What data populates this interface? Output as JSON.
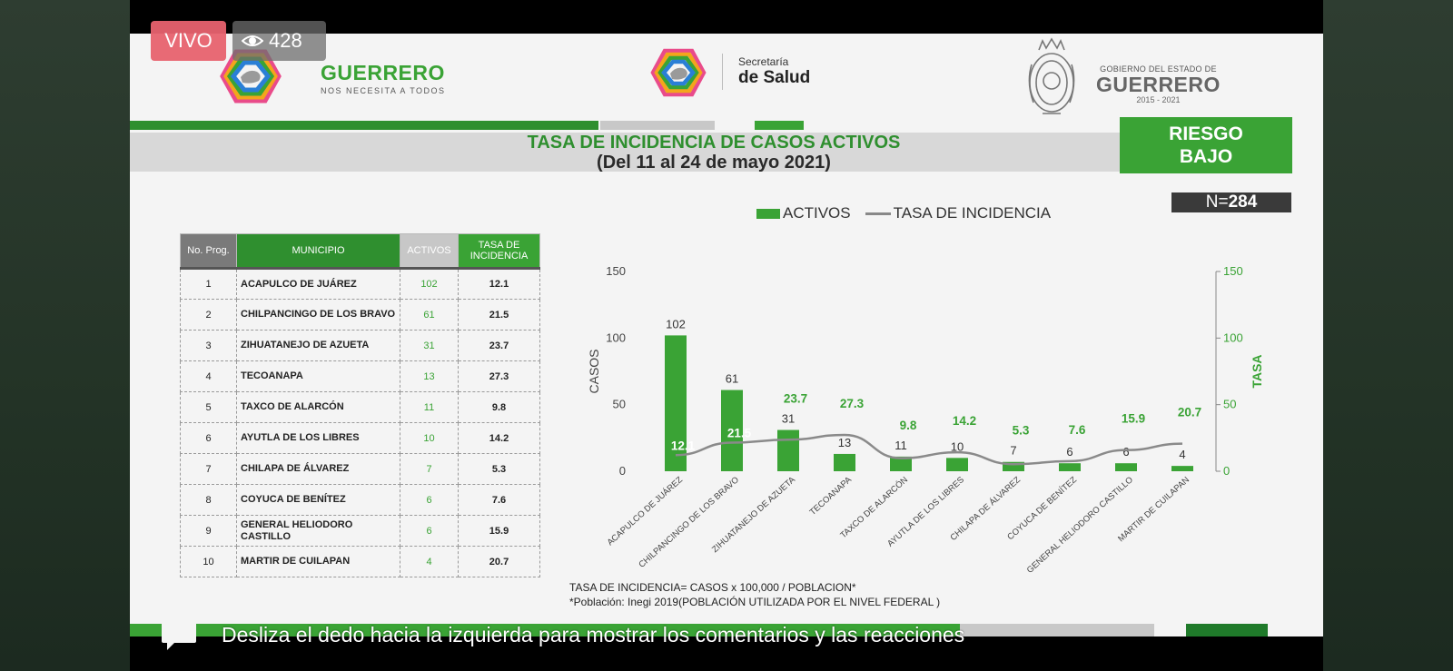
{
  "overlay": {
    "live_label": "VIVO",
    "viewer_count": "428",
    "swipe_hint": "Desliza el dedo hacia la izquierda para mostrar los comentarios y las reacciones"
  },
  "header": {
    "brand_title": "GUERRERO",
    "brand_subtitle": "NOS NECESITA A TODOS",
    "salud_small": "Secretaría",
    "salud_big": "de Salud",
    "gob_small": "GOBIERNO DEL ESTADO DE",
    "gob_big": "GUERRERO",
    "gob_years": "2015 - 2021"
  },
  "title": {
    "main": "TASA DE INCIDENCIA DE CASOS ACTIVOS",
    "sub": "(Del 11 al 24 de mayo 2021)"
  },
  "risk": {
    "line1": "RIESGO",
    "line2": "BAJO"
  },
  "n_label": "N=",
  "n_value": "284",
  "table": {
    "headers": {
      "no": "No. Prog.",
      "municipio": "MUNICIPIO",
      "activos": "ACTIVOS",
      "tasa": "TASA DE INCIDENCIA"
    },
    "rows": [
      {
        "no": "1",
        "municipio": "ACAPULCO DE JUÁREZ",
        "activos": "102",
        "tasa": "12.1"
      },
      {
        "no": "2",
        "municipio": "CHILPANCINGO DE LOS BRAVO",
        "activos": "61",
        "tasa": "21.5"
      },
      {
        "no": "3",
        "municipio": "ZIHUATANEJO DE AZUETA",
        "activos": "31",
        "tasa": "23.7"
      },
      {
        "no": "4",
        "municipio": "TECOANAPA",
        "activos": "13",
        "tasa": "27.3"
      },
      {
        "no": "5",
        "municipio": "TAXCO DE ALARCÓN",
        "activos": "11",
        "tasa": "9.8"
      },
      {
        "no": "6",
        "municipio": "AYUTLA DE LOS LIBRES",
        "activos": "10",
        "tasa": "14.2"
      },
      {
        "no": "7",
        "municipio": "CHILAPA DE ÁLVAREZ",
        "activos": "7",
        "tasa": "5.3"
      },
      {
        "no": "8",
        "municipio": "COYUCA DE BENÍTEZ",
        "activos": "6",
        "tasa": "7.6"
      },
      {
        "no": "9",
        "municipio": "GENERAL HELIODORO CASTILLO",
        "activos": "6",
        "tasa": "15.9"
      },
      {
        "no": "10",
        "municipio": "MARTIR DE CUILAPAN",
        "activos": "4",
        "tasa": "20.7"
      }
    ]
  },
  "legend": {
    "bars": "ACTIVOS",
    "line": "TASA DE INCIDENCIA"
  },
  "chart_data": {
    "type": "bar",
    "categories": [
      "ACAPULCO DE JUÁREZ",
      "CHILPANCINGO DE LOS BRAVO",
      "ZIHUATANEJO DE AZUETA",
      "TECOANAPA",
      "TAXCO DE ALARCÓN",
      "AYUTLA DE LOS LIBRES",
      "CHILAPA DE ÁLVAREZ",
      "COYUCA DE BENÍTEZ",
      "GENERAL HELIODORO CASTILLO",
      "MARTIR DE CUILAPAN"
    ],
    "series": [
      {
        "name": "ACTIVOS",
        "type": "bar",
        "axis": "left",
        "values": [
          102,
          61,
          31,
          13,
          11,
          10,
          7,
          6,
          6,
          4
        ]
      },
      {
        "name": "TASA DE INCIDENCIA",
        "type": "line",
        "axis": "right",
        "values": [
          12.1,
          21.5,
          23.7,
          27.3,
          9.8,
          14.2,
          5.3,
          7.6,
          15.9,
          20.7
        ]
      }
    ],
    "ylabel": "CASOS",
    "y2label": "TASA",
    "ylim": [
      0,
      150
    ],
    "y2lim": [
      0,
      150
    ],
    "yticks": [
      0,
      50,
      100,
      150
    ],
    "legend_position": "top",
    "grid": false,
    "bar_color": "#3aa335",
    "line_color": "#8a8a8a"
  },
  "footnote": {
    "line1": "TASA DE INCIDENCIA= CASOS x 100,000 / POBLACION*",
    "line2": "*Población: Inegi 2019(POBLACIÓN UTILIZADA POR EL NIVEL FEDERAL )"
  }
}
